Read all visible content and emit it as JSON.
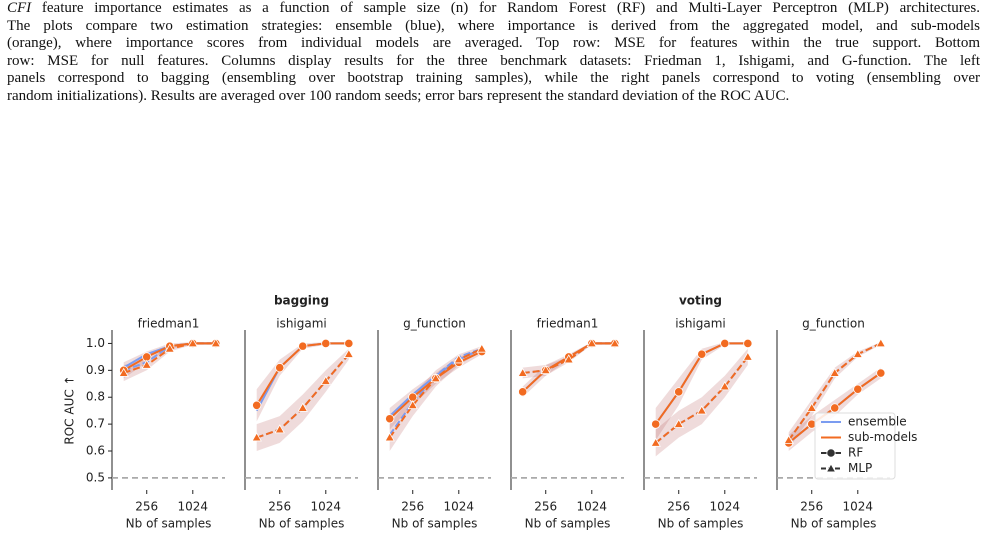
{
  "caption": {
    "lead": "CFI",
    "lines": [
      " feature importance estimates as a function of sample size (n) for Random Forest (RF) and Multi-Layer Perceptron (MLP) architectures.",
      "The plots compare two estimation strategies: ensemble (blue), where importance is derived from the aggregated model, and sub-models",
      "(orange), where importance scores from individual models are averaged. Top row: MSE for features within the true support. Bottom",
      "row: MSE for null features. Columns display results for the three benchmark datasets: Friedman 1, Ishigami, and G-function. The left",
      "panels correspond to bagging (ensembling over bootstrap training samples), while the right panels correspond to voting (ensembling over",
      "random initializations). Results are averaged over 100 random seeds; error bars represent the standard deviation of the ROC AUC."
    ]
  },
  "legend": {
    "entries": [
      {
        "name": "ensemble",
        "color": "#7b9cf0"
      },
      {
        "name": "sub-models",
        "color": "#f26b21"
      },
      {
        "name": "RF",
        "marker": "circle",
        "dash": false
      },
      {
        "name": "MLP",
        "marker": "triangle",
        "dash": true
      }
    ]
  },
  "chart_data": [
    {
      "type": "line",
      "title": "friedman1",
      "xlabel": "Nb of samples",
      "ylabel": "ROC AUC ↑",
      "xscale": "log",
      "x": [
        128,
        256,
        512,
        1024,
        2048
      ],
      "xlim": [
        90,
        2700
      ],
      "xticks": [
        256,
        1024
      ],
      "ylim": [
        0.455,
        1.05
      ],
      "yticks": [
        0.5,
        0.6,
        0.7,
        0.8,
        0.9,
        {
          "value": 1,
          "label": "1.0"
        }
      ],
      "reference": 0.5,
      "series": [
        {
          "strategy": "ensemble",
          "model": "RF",
          "values": [
            0.91,
            0.96,
            0.99,
            1.0,
            1.0
          ]
        },
        {
          "strategy": "ensemble",
          "model": "MLP",
          "values": [
            0.9,
            0.93,
            0.99,
            1.0,
            1.0
          ]
        },
        {
          "strategy": "sub-models",
          "model": "RF",
          "values": [
            0.9,
            0.95,
            0.99,
            1.0,
            1.0
          ],
          "errors": [
            0.03,
            0.02,
            0.01,
            0.005,
            0.005
          ]
        },
        {
          "strategy": "sub-models",
          "model": "MLP",
          "values": [
            0.89,
            0.92,
            0.98,
            1.0,
            1.0
          ],
          "errors": [
            0.03,
            0.02,
            0.01,
            0.005,
            0.005
          ]
        }
      ]
    },
    {
      "type": "line",
      "title": "ishigami",
      "group_title": "bagging",
      "xlabel": "Nb of samples",
      "xscale": "log",
      "x": [
        128,
        256,
        512,
        1024,
        2048
      ],
      "xlim": [
        90,
        2700
      ],
      "xticks": [
        256,
        1024
      ],
      "ylim": [
        0.455,
        1.05
      ],
      "reference": 0.5,
      "series": [
        {
          "strategy": "ensemble",
          "model": "RF",
          "values": [
            0.75,
            0.91,
            0.99,
            1.0,
            1.0
          ]
        },
        {
          "strategy": "ensemble",
          "model": "MLP",
          "values": [
            0.65,
            0.68,
            0.76,
            0.86,
            0.96
          ]
        },
        {
          "strategy": "sub-models",
          "model": "RF",
          "values": [
            0.77,
            0.91,
            0.99,
            1.0,
            1.0
          ],
          "errors": [
            0.06,
            0.03,
            0.01,
            0.005,
            0.005
          ]
        },
        {
          "strategy": "sub-models",
          "model": "MLP",
          "values": [
            0.65,
            0.68,
            0.76,
            0.86,
            0.96
          ],
          "errors": [
            0.05,
            0.05,
            0.05,
            0.04,
            0.02
          ]
        }
      ]
    },
    {
      "type": "line",
      "title": "g_function",
      "xlabel": "Nb of samples",
      "xscale": "log",
      "x": [
        128,
        256,
        512,
        1024,
        2048
      ],
      "xlim": [
        90,
        2700
      ],
      "xticks": [
        256,
        1024
      ],
      "ylim": [
        0.455,
        1.05
      ],
      "reference": 0.5,
      "series": [
        {
          "strategy": "ensemble",
          "model": "RF",
          "values": [
            0.73,
            0.81,
            0.88,
            0.94,
            0.98
          ]
        },
        {
          "strategy": "ensemble",
          "model": "MLP",
          "values": [
            0.66,
            0.78,
            0.88,
            0.95,
            0.98
          ]
        },
        {
          "strategy": "sub-models",
          "model": "RF",
          "values": [
            0.72,
            0.8,
            0.87,
            0.93,
            0.97
          ],
          "errors": [
            0.04,
            0.03,
            0.02,
            0.02,
            0.01
          ]
        },
        {
          "strategy": "sub-models",
          "model": "MLP",
          "values": [
            0.65,
            0.77,
            0.87,
            0.94,
            0.98
          ],
          "errors": [
            0.05,
            0.04,
            0.03,
            0.02,
            0.01
          ]
        }
      ]
    },
    {
      "type": "line",
      "title": "friedman1",
      "xlabel": "Nb of samples",
      "xscale": "log",
      "x": [
        128,
        256,
        512,
        1024,
        2048
      ],
      "xlim": [
        90,
        2700
      ],
      "xticks": [
        256,
        1024
      ],
      "ylim": [
        0.455,
        1.05
      ],
      "reference": 0.5,
      "series": [
        {
          "strategy": "ensemble",
          "model": "RF",
          "values": [
            0.82,
            0.9,
            0.95,
            1.0,
            1.0
          ]
        },
        {
          "strategy": "ensemble",
          "model": "MLP",
          "values": [
            0.89,
            0.9,
            0.94,
            1.0,
            1.0
          ]
        },
        {
          "strategy": "sub-models",
          "model": "RF",
          "values": [
            0.82,
            0.9,
            0.95,
            1.0,
            1.0
          ],
          "errors": [
            0.02,
            0.02,
            0.01,
            0.005,
            0.005
          ]
        },
        {
          "strategy": "sub-models",
          "model": "MLP",
          "values": [
            0.89,
            0.9,
            0.94,
            1.0,
            1.0
          ],
          "errors": [
            0.02,
            0.02,
            0.01,
            0.005,
            0.005
          ]
        }
      ]
    },
    {
      "type": "line",
      "title": "ishigami",
      "group_title": "voting",
      "xlabel": "Nb of samples",
      "xscale": "log",
      "x": [
        128,
        256,
        512,
        1024,
        2048
      ],
      "xlim": [
        90,
        2700
      ],
      "xticks": [
        256,
        1024
      ],
      "ylim": [
        0.455,
        1.05
      ],
      "reference": 0.5,
      "series": [
        {
          "strategy": "ensemble",
          "model": "RF",
          "values": [
            0.7,
            0.82,
            0.96,
            1.0,
            1.0
          ]
        },
        {
          "strategy": "ensemble",
          "model": "MLP",
          "values": [
            0.63,
            0.7,
            0.75,
            0.84,
            0.95
          ]
        },
        {
          "strategy": "sub-models",
          "model": "RF",
          "values": [
            0.7,
            0.82,
            0.96,
            1.0,
            1.0
          ],
          "errors": [
            0.06,
            0.05,
            0.02,
            0.005,
            0.005
          ]
        },
        {
          "strategy": "sub-models",
          "model": "MLP",
          "values": [
            0.63,
            0.7,
            0.75,
            0.84,
            0.95
          ],
          "errors": [
            0.05,
            0.05,
            0.05,
            0.04,
            0.03
          ]
        }
      ]
    },
    {
      "type": "line",
      "title": "g_function",
      "xlabel": "Nb of samples",
      "xscale": "log",
      "x": [
        128,
        256,
        512,
        1024,
        2048
      ],
      "xlim": [
        90,
        2700
      ],
      "xticks": [
        256,
        1024
      ],
      "ylim": [
        0.455,
        1.05
      ],
      "reference": 0.5,
      "series": [
        {
          "strategy": "ensemble",
          "model": "RF",
          "values": [
            0.63,
            0.7,
            0.76,
            0.83,
            0.89
          ]
        },
        {
          "strategy": "ensemble",
          "model": "MLP",
          "values": [
            0.64,
            0.76,
            0.89,
            0.96,
            1.0
          ]
        },
        {
          "strategy": "sub-models",
          "model": "RF",
          "values": [
            0.63,
            0.7,
            0.76,
            0.83,
            0.89
          ],
          "errors": [
            0.03,
            0.03,
            0.03,
            0.02,
            0.02
          ]
        },
        {
          "strategy": "sub-models",
          "model": "MLP",
          "values": [
            0.64,
            0.76,
            0.89,
            0.96,
            1.0
          ],
          "errors": [
            0.03,
            0.03,
            0.02,
            0.01,
            0.005
          ]
        }
      ]
    }
  ]
}
